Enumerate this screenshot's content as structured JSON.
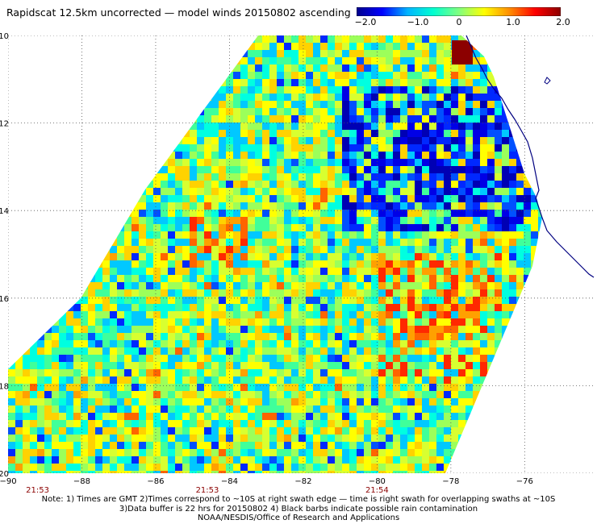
{
  "title": "Rapidscat 12.5km uncorrected — model winds 20150802 ascending",
  "colorbar": {
    "ticks": [
      "−2.0",
      "−1.0",
      "0",
      "1.0",
      "2.0"
    ],
    "values": [
      -2,
      -1,
      0,
      1,
      2
    ],
    "colors": [
      "#00008c",
      "#0000ff",
      "#00b4ff",
      "#00ffd0",
      "#7fff80",
      "#ffff00",
      "#ff8c00",
      "#ff0000",
      "#8c0000"
    ]
  },
  "map": {
    "lon_range": [
      -90,
      -75
    ],
    "lat_range": [
      -20,
      -10
    ],
    "lon_ticks": [
      "−90",
      "−88",
      "−86",
      "−84",
      "−82",
      "−80",
      "−78",
      "−76"
    ],
    "lat_ticks": [
      "−10",
      "−12",
      "−14",
      "−16",
      "−18",
      "−20"
    ],
    "times": [
      "21:53",
      "21:53",
      "21:54"
    ],
    "coast_color": "#000080",
    "grid_color": "#555555"
  },
  "notes": [
    "Note: 1) Times are GMT 2)Times correspond to ~10S at right swath edge — time is right swath for overlapping swaths at ~10S",
    "3)Data buffer is 22 hrs for 20150802 4) Black barbs indicate possible rain contamination",
    "NOAA/NESDIS/Office of Research and Applications"
  ]
}
